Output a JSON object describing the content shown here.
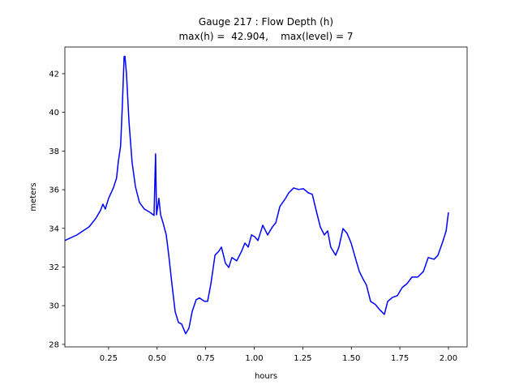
{
  "chart_data": {
    "type": "line",
    "title": "Gauge 217 : Flow Depth (h)",
    "subtitle": "max(h) =  42.904,    max(level) = 7",
    "xlabel": "hours",
    "ylabel": "meters",
    "xlim": [
      0.025,
      2.096
    ],
    "ylim": [
      27.87,
      43.38
    ],
    "xticks": [
      0.25,
      {
        "value": 0.5,
        "label": "0.50"
      },
      0.75,
      {
        "value": 1,
        "label": "1.00"
      },
      1.25,
      {
        "value": 1.5,
        "label": "1.50"
      },
      1.75,
      {
        "value": 2,
        "label": "2.00"
      }
    ],
    "yticks": [
      28,
      30,
      32,
      34,
      36,
      38,
      40,
      42
    ],
    "grid": false,
    "series": [
      {
        "color": "#0000ff",
        "x": [
          0.025,
          0.087,
          0.15,
          0.183,
          0.208,
          0.221,
          0.233,
          0.25,
          0.275,
          0.291,
          0.3,
          0.312,
          0.321,
          0.33,
          0.334,
          0.342,
          0.355,
          0.371,
          0.388,
          0.409,
          0.434,
          0.463,
          0.484,
          0.492,
          0.497,
          0.509,
          0.518,
          0.53,
          0.547,
          0.56,
          0.576,
          0.593,
          0.61,
          0.626,
          0.647,
          0.664,
          0.68,
          0.701,
          0.718,
          0.743,
          0.76,
          0.777,
          0.798,
          0.818,
          0.831,
          0.852,
          0.869,
          0.885,
          0.91,
          0.935,
          0.952,
          0.969,
          0.986,
          1.002,
          1.019,
          1.044,
          1.069,
          1.094,
          1.111,
          1.132,
          1.161,
          1.178,
          1.203,
          1.228,
          1.253,
          1.278,
          1.299,
          1.319,
          1.34,
          1.361,
          1.378,
          1.394,
          1.419,
          1.436,
          1.457,
          1.478,
          1.499,
          1.52,
          1.541,
          1.562,
          1.578,
          1.599,
          1.624,
          1.645,
          1.67,
          1.687,
          1.712,
          1.737,
          1.762,
          1.787,
          1.812,
          1.842,
          1.871,
          1.896,
          1.926,
          1.946,
          1.971,
          1.988,
          2.0
        ],
        "values": [
          33.37,
          33.66,
          34.08,
          34.5,
          34.92,
          35.25,
          35.0,
          35.55,
          36.1,
          36.6,
          37.43,
          38.27,
          40.37,
          42.88,
          42.904,
          42.04,
          39.53,
          37.43,
          36.17,
          35.34,
          35.0,
          34.83,
          34.67,
          37.85,
          34.7,
          35.55,
          34.7,
          34.3,
          33.66,
          32.6,
          31.14,
          29.68,
          29.13,
          29.05,
          28.55,
          28.84,
          29.68,
          30.31,
          30.4,
          30.23,
          30.23,
          31.14,
          32.61,
          32.82,
          33.03,
          32.19,
          31.98,
          32.49,
          32.32,
          32.82,
          33.24,
          33.03,
          33.66,
          33.57,
          33.37,
          34.16,
          33.66,
          34.08,
          34.29,
          35.13,
          35.55,
          35.84,
          36.09,
          36.01,
          36.05,
          35.84,
          35.76,
          34.92,
          34.08,
          33.66,
          33.87,
          33.03,
          32.61,
          33.03,
          33.99,
          33.74,
          33.24,
          32.49,
          31.77,
          31.35,
          31.06,
          30.22,
          30.06,
          29.8,
          29.55,
          30.22,
          30.43,
          30.52,
          30.94,
          31.14,
          31.48,
          31.48,
          31.77,
          32.49,
          32.4,
          32.61,
          33.32,
          33.87,
          34.83
        ]
      }
    ]
  }
}
